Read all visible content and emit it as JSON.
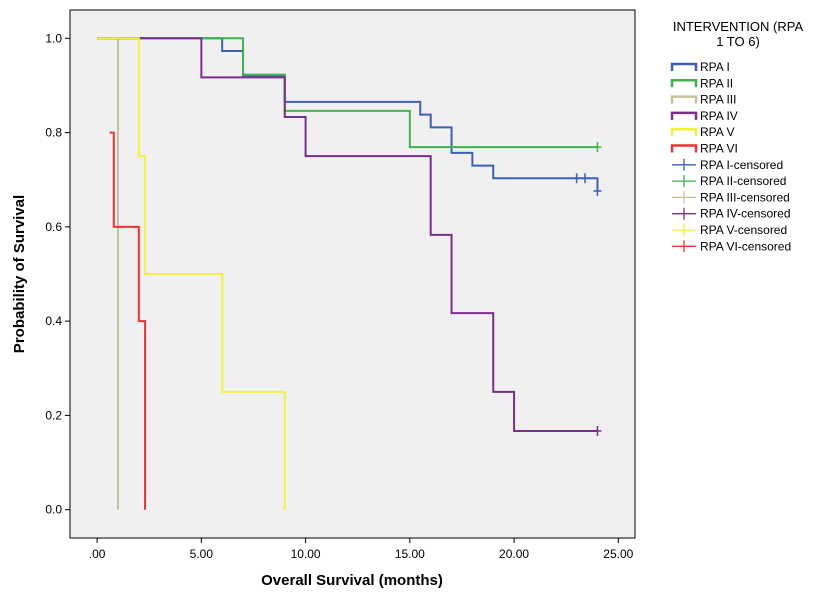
{
  "chart_data": {
    "type": "line",
    "step": true,
    "xlabel": "Overall Survival (months)",
    "ylabel": "Probability of Survival",
    "xlim": [
      -1.3,
      25.8
    ],
    "ylim": [
      -0.06,
      1.06
    ],
    "xticks": [
      0,
      5,
      10,
      15,
      20,
      25
    ],
    "xtick_labels": [
      ".00",
      "5.00",
      "10.00",
      "15.00",
      "20.00",
      "25.00"
    ],
    "yticks": [
      0,
      0.2,
      0.4,
      0.6,
      0.8,
      1.0
    ],
    "ytick_labels": [
      "0.0",
      "0.2",
      "0.4",
      "0.6",
      "0.8",
      "1.0"
    ],
    "grid": false,
    "legend": {
      "title": "INTERVENTION (RPA 1 TO 6)",
      "title_lines": [
        "INTERVENTION (RPA",
        "1 TO 6)"
      ],
      "placement": "right",
      "entries": [
        "RPA I",
        "RPA II",
        "RPA III",
        "RPA IV",
        "RPA V",
        "RPA VI",
        "RPA I-censored",
        "RPA II-censored",
        "RPA III-censored",
        "RPA IV-censored",
        "RPA V-censored",
        "RPA VI-censored"
      ]
    },
    "series": [
      {
        "name": "RPA I",
        "color": "#3b5fba",
        "steps": [
          [
            0,
            1.0
          ],
          [
            6,
            0.973
          ],
          [
            7,
            0.919
          ],
          [
            9,
            0.865
          ],
          [
            15.5,
            0.838
          ],
          [
            16,
            0.811
          ],
          [
            17,
            0.757
          ],
          [
            18,
            0.73
          ],
          [
            19,
            0.703
          ],
          [
            24,
            0.676
          ]
        ],
        "end": 24,
        "censored": [
          [
            23,
            0.703
          ],
          [
            23.4,
            0.703
          ],
          [
            24,
            0.676
          ]
        ]
      },
      {
        "name": "RPA II",
        "color": "#3cb44b",
        "steps": [
          [
            0,
            1.0
          ],
          [
            7,
            0.923
          ],
          [
            9,
            0.846
          ],
          [
            15,
            0.769
          ]
        ],
        "end": 24,
        "censored": [
          [
            24,
            0.769
          ]
        ]
      },
      {
        "name": "RPA III",
        "color": "#c8c09a",
        "steps": [
          [
            0,
            1.0
          ],
          [
            1,
            0.0
          ]
        ],
        "end": 1,
        "censored": []
      },
      {
        "name": "RPA IV",
        "color": "#7b2d8e",
        "steps": [
          [
            0,
            1.0
          ],
          [
            5,
            0.917
          ],
          [
            9,
            0.833
          ],
          [
            10,
            0.75
          ],
          [
            16,
            0.583
          ],
          [
            17,
            0.417
          ],
          [
            19,
            0.25
          ],
          [
            20,
            0.167
          ]
        ],
        "end": 24,
        "censored": [
          [
            24,
            0.167
          ]
        ]
      },
      {
        "name": "RPA V",
        "color": "#f2f23a",
        "steps": [
          [
            0,
            1.0
          ],
          [
            2,
            0.75
          ],
          [
            2.3,
            0.5
          ],
          [
            6,
            0.25
          ],
          [
            9,
            0.0
          ]
        ],
        "end": 9,
        "censored": []
      },
      {
        "name": "RPA VI",
        "color": "#f03232",
        "steps": [
          [
            0.6,
            0.8
          ],
          [
            0.8,
            0.6
          ],
          [
            2,
            0.4
          ],
          [
            2.3,
            0.0
          ]
        ],
        "end": 2.3,
        "censored": []
      }
    ]
  }
}
